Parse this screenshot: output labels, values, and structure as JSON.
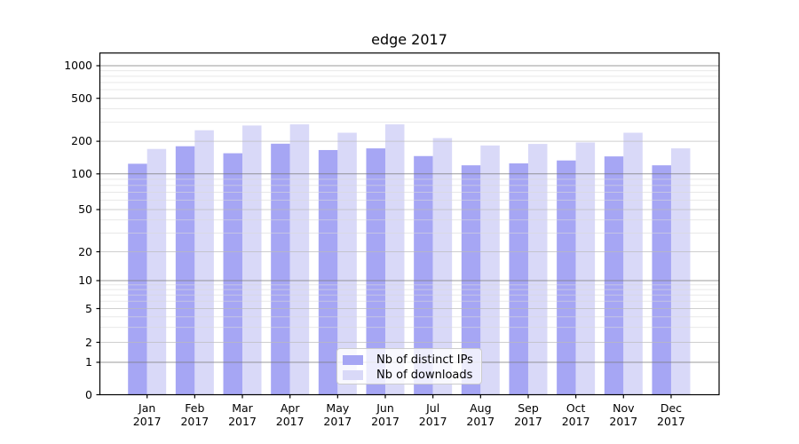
{
  "chart_data": {
    "type": "bar",
    "title": "edge 2017",
    "x": [
      "Jan",
      "Feb",
      "Mar",
      "Apr",
      "May",
      "Jun",
      "Jul",
      "Aug",
      "Sep",
      "Oct",
      "Nov",
      "Dec"
    ],
    "x_year": "2017",
    "y_ticks": [
      0,
      1,
      2,
      5,
      10,
      20,
      50,
      100,
      200,
      500,
      1000
    ],
    "y_scale": "symlog",
    "ylim": [
      0,
      1400
    ],
    "grid": true,
    "legend_position": "lower center",
    "series": [
      {
        "name": "Nb of distinct IPs",
        "color": "#a6a6f4",
        "values": [
          124,
          180,
          155,
          190,
          166,
          172,
          146,
          120,
          125,
          133,
          145,
          120
        ]
      },
      {
        "name": "Nb of downloads",
        "color": "#d9d9f8",
        "values": [
          170,
          253,
          280,
          287,
          240,
          287,
          214,
          183,
          189,
          195,
          240,
          172
        ]
      }
    ]
  }
}
